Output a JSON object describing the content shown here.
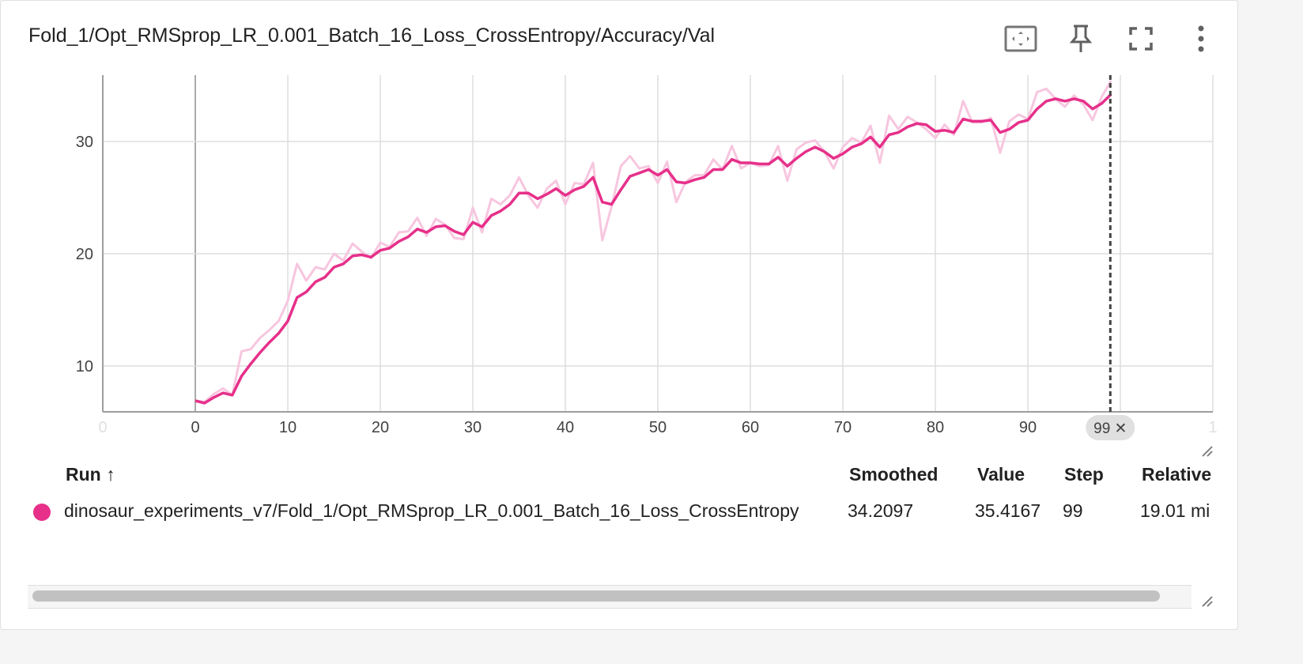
{
  "card": {
    "title": "Fold_1/Opt_RMSprop_LR_0.001_Batch_16_Loss_CrossEntropy/Accuracy/Val",
    "icons": [
      "fit-domain-icon",
      "pin-icon",
      "fullscreen-icon",
      "more-vert-icon"
    ]
  },
  "colors": {
    "smoothed": "#e6308a",
    "raw": "#f7c6df",
    "grid": "#dddddd",
    "axis": "#9e9e9e",
    "cursor": "#424242"
  },
  "chart_data": {
    "type": "line",
    "xlabel": "",
    "ylabel": "",
    "xlim": [
      -10,
      110
    ],
    "ylim": [
      6,
      36
    ],
    "x_ticks": [
      "0",
      "0",
      "10",
      "20",
      "30",
      "40",
      "50",
      "60",
      "70",
      "80",
      "90",
      "1"
    ],
    "y_ticks": [
      10,
      20,
      30
    ],
    "grid": true,
    "cursor": {
      "step": 99,
      "label": "99 ✕"
    },
    "series": [
      {
        "role": "raw",
        "x": [
          0,
          1,
          2,
          3,
          4,
          5,
          6,
          7,
          8,
          9,
          10,
          11,
          12,
          13,
          14,
          15,
          16,
          17,
          18,
          19,
          20,
          21,
          22,
          23,
          24,
          25,
          26,
          27,
          28,
          29,
          30,
          31,
          32,
          33,
          34,
          35,
          36,
          37,
          38,
          39,
          40,
          41,
          42,
          43,
          44,
          45,
          46,
          47,
          48,
          49,
          50,
          51,
          52,
          53,
          54,
          55,
          56,
          57,
          58,
          59,
          60,
          61,
          62,
          63,
          64,
          65,
          66,
          67,
          68,
          69,
          70,
          71,
          72,
          73,
          74,
          75,
          76,
          77,
          78,
          79,
          80,
          81,
          82,
          83,
          84,
          85,
          86,
          87,
          88,
          89,
          90,
          91,
          92,
          93,
          94,
          95,
          96,
          97,
          98,
          99
        ],
        "values": [
          6.9,
          6.8,
          7.5,
          8.0,
          7.4,
          11.3,
          11.5,
          12.5,
          13.2,
          14.0,
          15.8,
          19.1,
          17.6,
          18.8,
          18.6,
          20.0,
          19.4,
          20.9,
          20.2,
          19.6,
          21.0,
          20.6,
          21.9,
          22.0,
          23.2,
          21.6,
          23.1,
          22.6,
          21.4,
          21.3,
          24.1,
          21.9,
          24.9,
          24.4,
          25.2,
          26.8,
          25.2,
          24.1,
          25.8,
          26.5,
          24.4,
          26.3,
          26.2,
          28.1,
          21.2,
          24.2,
          27.8,
          28.7,
          27.6,
          27.8,
          26.3,
          28.2,
          24.6,
          26.4,
          27.0,
          27.0,
          28.4,
          27.5,
          29.6,
          27.6,
          28.1,
          27.8,
          27.9,
          29.6,
          26.5,
          29.3,
          29.9,
          30.1,
          29.1,
          27.6,
          29.5,
          30.3,
          29.9,
          31.4,
          28.1,
          32.3,
          31.1,
          32.2,
          31.7,
          31.1,
          30.3,
          31.5,
          30.6,
          33.6,
          31.7,
          31.7,
          32.1,
          29.0,
          31.8,
          32.4,
          32.0,
          34.4,
          34.7,
          33.8,
          33.1,
          34.1,
          33.3,
          31.9,
          34.0,
          35.4167
        ]
      },
      {
        "role": "smoothed",
        "x": [
          0,
          1,
          2,
          3,
          4,
          5,
          6,
          7,
          8,
          9,
          10,
          11,
          12,
          13,
          14,
          15,
          16,
          17,
          18,
          19,
          20,
          21,
          22,
          23,
          24,
          25,
          26,
          27,
          28,
          29,
          30,
          31,
          32,
          33,
          34,
          35,
          36,
          37,
          38,
          39,
          40,
          41,
          42,
          43,
          44,
          45,
          46,
          47,
          48,
          49,
          50,
          51,
          52,
          53,
          54,
          55,
          56,
          57,
          58,
          59,
          60,
          61,
          62,
          63,
          64,
          65,
          66,
          67,
          68,
          69,
          70,
          71,
          72,
          73,
          74,
          75,
          76,
          77,
          78,
          79,
          80,
          81,
          82,
          83,
          84,
          85,
          86,
          87,
          88,
          89,
          90,
          91,
          92,
          93,
          94,
          95,
          96,
          97,
          98,
          99
        ],
        "values": [
          6.9,
          6.7,
          7.2,
          7.6,
          7.4,
          9.1,
          10.2,
          11.2,
          12.1,
          12.9,
          14.0,
          16.1,
          16.6,
          17.5,
          17.9,
          18.8,
          19.1,
          19.8,
          19.9,
          19.7,
          20.3,
          20.5,
          21.1,
          21.5,
          22.2,
          21.9,
          22.4,
          22.5,
          22.0,
          21.7,
          22.8,
          22.4,
          23.4,
          23.8,
          24.4,
          25.4,
          25.4,
          24.9,
          25.3,
          25.8,
          25.2,
          25.7,
          26.0,
          26.8,
          24.6,
          24.4,
          25.7,
          26.9,
          27.2,
          27.5,
          27.0,
          27.5,
          26.4,
          26.3,
          26.6,
          26.8,
          27.5,
          27.5,
          28.4,
          28.1,
          28.1,
          28.0,
          28.0,
          28.6,
          27.8,
          28.5,
          29.1,
          29.5,
          29.1,
          28.5,
          28.9,
          29.5,
          29.8,
          30.4,
          29.5,
          30.6,
          30.8,
          31.3,
          31.6,
          31.5,
          30.9,
          31.0,
          30.8,
          32.0,
          31.8,
          31.8,
          31.9,
          30.8,
          31.1,
          31.7,
          31.9,
          32.9,
          33.6,
          33.8,
          33.6,
          33.8,
          33.6,
          32.9,
          33.4,
          34.2097
        ]
      }
    ]
  },
  "table": {
    "columns": [
      "Run ↑",
      "Smoothed",
      "Value",
      "Step",
      "Relative"
    ],
    "rows": [
      {
        "run": "dinosaur_experiments_v7/Fold_1/Opt_RMSprop_LR_0.001_Batch_16_Loss_CrossEntropy",
        "smoothed": "34.2097",
        "value": "35.4167",
        "step": "99",
        "relative": "19.01 mi",
        "color": "#e6308a"
      }
    ]
  }
}
